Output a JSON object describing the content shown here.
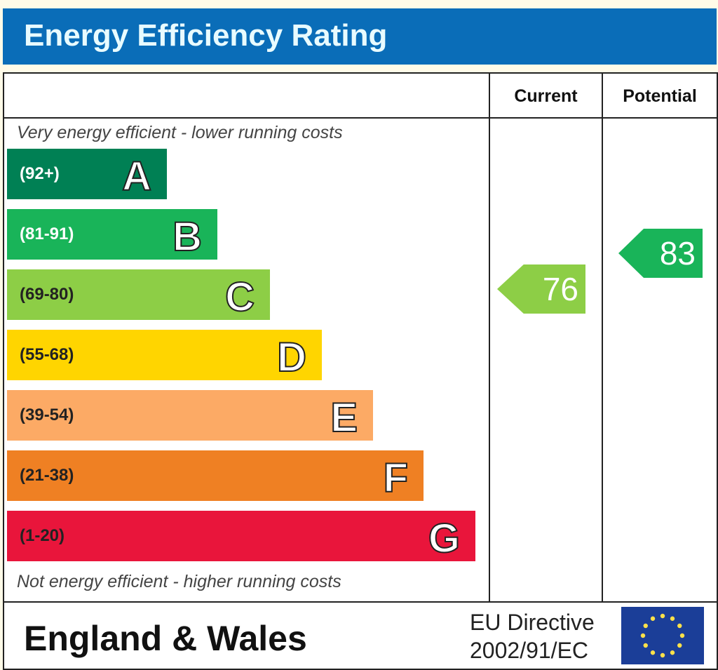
{
  "title": "Energy Efficiency Rating",
  "columns": {
    "current": "Current",
    "potential": "Potential"
  },
  "notes": {
    "top": "Very energy efficient - lower running costs",
    "bottom": "Not energy efficient - higher running costs"
  },
  "footer": {
    "region": "England & Wales",
    "directive_line1": "EU Directive",
    "directive_line2": "2002/91/EC",
    "flag_icon": "eu-flag-icon"
  },
  "colors": {
    "header": "#0a6db8",
    "flag": "#1b3e98"
  },
  "chart_data": {
    "type": "bar",
    "title": "Energy Efficiency Rating",
    "bands": [
      {
        "letter": "A",
        "range": "(92+)",
        "color": "#008054"
      },
      {
        "letter": "B",
        "range": "(81-91)",
        "color": "#19b459"
      },
      {
        "letter": "C",
        "range": "(69-80)",
        "color": "#8dce46"
      },
      {
        "letter": "D",
        "range": "(55-68)",
        "color": "#ffd500"
      },
      {
        "letter": "E",
        "range": "(39-54)",
        "color": "#fcaa65"
      },
      {
        "letter": "F",
        "range": "(21-38)",
        "color": "#ef8023"
      },
      {
        "letter": "G",
        "range": "(1-20)",
        "color": "#e9153b"
      }
    ],
    "current": {
      "value": "76",
      "band": "C",
      "color": "#8dce46"
    },
    "potential": {
      "value": "83",
      "band": "B",
      "color": "#19b459"
    }
  }
}
